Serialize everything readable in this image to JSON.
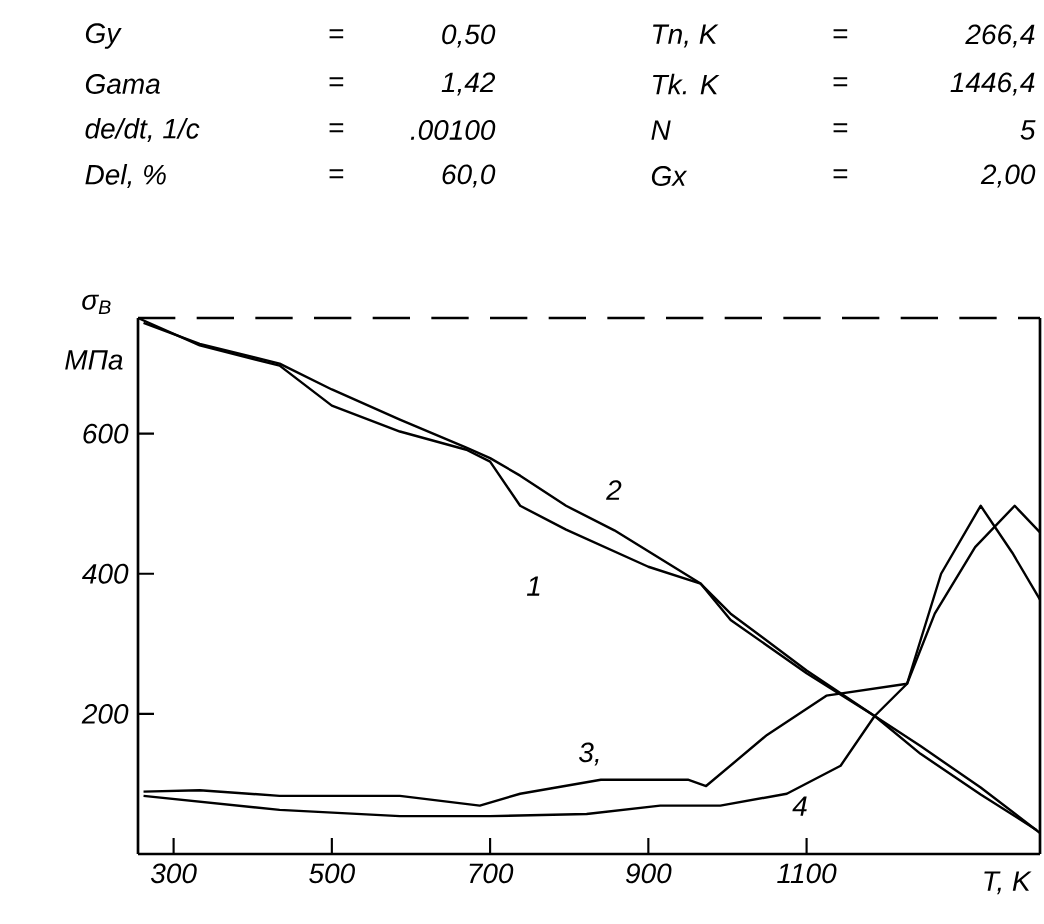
{
  "chart_data": {
    "type": "line",
    "xlabel": "T, K",
    "ylabel": "σ$_{B}$",
    "annotations": [
      "Gy",
      "=",
      "0,50",
      "Tn, K",
      "=",
      "266,4",
      "Gama",
      "=",
      "1,42",
      "Tk. K",
      "=",
      "1446,4",
      "de/dt, 1/c",
      "=",
      ".00100",
      "N",
      "=",
      "5",
      "Del, %",
      "=",
      "60,0",
      "Gx",
      "=",
      "2,00",
      "МПа",
      "1",
      "2",
      "3,",
      "4"
    ],
    "xlim": [
      255,
      1395
    ],
    "ylim": [
      0,
      765
    ],
    "xticks": [
      300,
      500,
      700,
      900,
      1100
    ],
    "yticks": [
      200,
      400,
      600
    ],
    "ref_lines": [
      {
        "axis": "y",
        "value": 765,
        "line_style": "dashed"
      }
    ],
    "marker": "none",
    "line_style": "solid",
    "series": [
      {
        "color": "#000000",
        "x": [
          255,
          333,
          434,
          500,
          586,
          670,
          700,
          738,
          796,
          900,
          966,
          1004,
          1100,
          1186,
          1244,
          1320,
          1391
        ],
        "values": [
          765,
          726,
          697,
          640,
          603,
          577,
          560,
          497,
          463,
          410,
          386,
          343,
          262,
          197,
          143,
          85,
          34
        ]
      },
      {
        "color": "#000000",
        "x": [
          262,
          333,
          434,
          500,
          586,
          670,
          700,
          738,
          796,
          857,
          966,
          1004,
          1100,
          1186,
          1244,
          1320,
          1395
        ],
        "values": [
          758,
          728,
          700,
          663,
          620,
          580,
          565,
          540,
          497,
          462,
          386,
          334,
          258,
          197,
          154,
          95,
          30
        ]
      },
      {
        "color": "#000000",
        "x": [
          262,
          333,
          434,
          586,
          687,
          738,
          840,
          950,
          973,
          1050,
          1125,
          1227,
          1270,
          1320,
          1360,
          1395
        ],
        "values": [
          89,
          91,
          83,
          83,
          69,
          86,
          106,
          106,
          97,
          170,
          226,
          243,
          400,
          497,
          430,
          363
        ]
      },
      {
        "color": "#000000",
        "x": [
          262,
          434,
          586,
          700,
          822,
          915,
          991,
          1075,
          1143,
          1186,
          1227,
          1262,
          1313,
          1363,
          1395
        ],
        "values": [
          83,
          63,
          54,
          54,
          57,
          69,
          69,
          86,
          126,
          197,
          243,
          343,
          438,
          497,
          459
        ]
      }
    ]
  }
}
